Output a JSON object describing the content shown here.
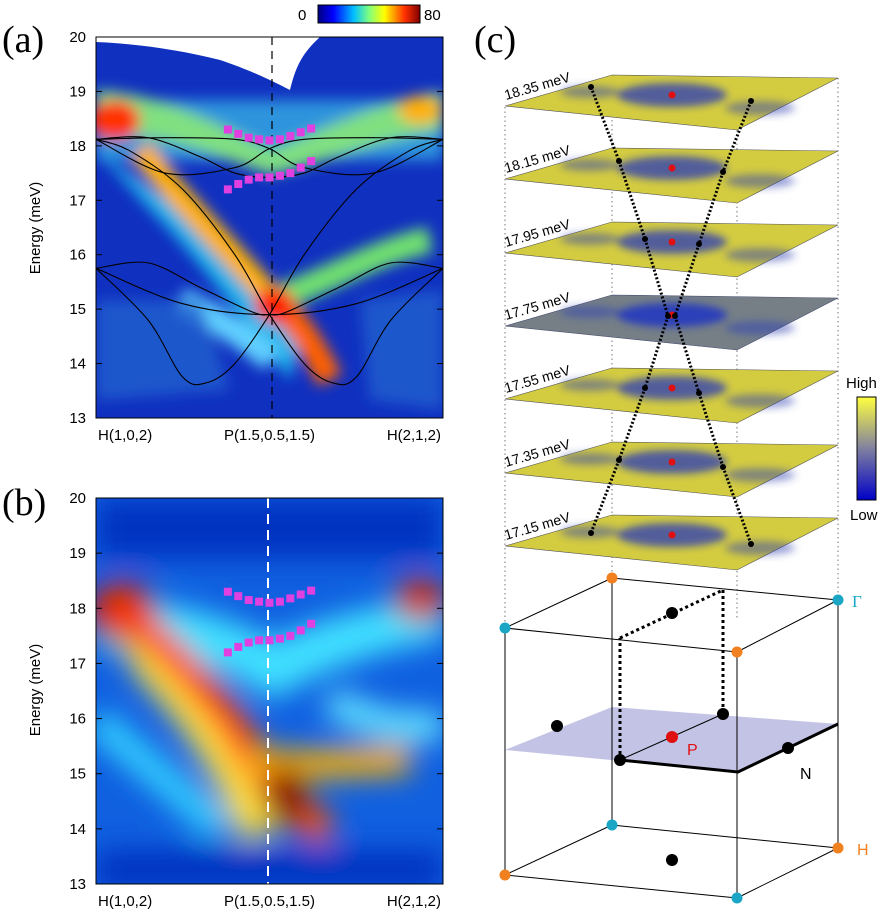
{
  "panels": {
    "a": "(a)",
    "b": "(b)",
    "c": "(c)"
  },
  "colors": {
    "marker": "#e040e0",
    "gamma": "#1aa6c4",
    "h_point": "#f08020",
    "p_point": "#e01010"
  },
  "colorbar_a": {
    "min": "0",
    "max": "80"
  },
  "colorbar_c": {
    "high": "High",
    "low": "Low"
  },
  "chart_data": [
    {
      "type": "heatmap",
      "panel": "(a)",
      "ylabel": "Energy (meV)",
      "ylim": [
        13,
        20
      ],
      "yticks": [
        "13",
        "14",
        "15",
        "16",
        "17",
        "18",
        "19",
        "20"
      ],
      "xticks": [
        "H(1,0,2)",
        "P(1.5,0.5,1.5)",
        "H(2,1,2)"
      ],
      "xlim": [
        0,
        1
      ],
      "colorbar_range": [
        0,
        80
      ],
      "dispersion_curves": [
        {
          "points": [
            [
              0.0,
              18.12
            ],
            [
              0.15,
              18.15
            ],
            [
              0.3,
              17.8
            ],
            [
              0.4,
              17.5
            ],
            [
              0.5,
              17.42
            ],
            [
              0.6,
              17.5
            ],
            [
              0.7,
              17.8
            ],
            [
              0.85,
              18.15
            ],
            [
              1.0,
              18.12
            ]
          ]
        },
        {
          "points": [
            [
              0.0,
              18.12
            ],
            [
              0.2,
              18.15
            ],
            [
              0.4,
              18.12
            ],
            [
              0.5,
              17.95
            ],
            [
              0.6,
              17.6
            ],
            [
              0.8,
              17.5
            ],
            [
              1.0,
              18.12
            ]
          ]
        },
        {
          "points": [
            [
              0.0,
              18.12
            ],
            [
              0.2,
              17.5
            ],
            [
              0.4,
              17.6
            ],
            [
              0.5,
              17.95
            ],
            [
              0.6,
              18.12
            ],
            [
              0.8,
              18.15
            ],
            [
              1.0,
              18.12
            ]
          ]
        },
        {
          "points": [
            [
              0.0,
              15.75
            ],
            [
              0.15,
              15.85
            ],
            [
              0.3,
              15.4
            ],
            [
              0.45,
              14.95
            ],
            [
              0.5,
              14.9
            ],
            [
              0.55,
              14.95
            ],
            [
              0.7,
              15.4
            ],
            [
              0.85,
              15.85
            ],
            [
              1.0,
              15.75
            ]
          ]
        },
        {
          "points": [
            [
              0.0,
              15.75
            ],
            [
              0.15,
              14.8
            ],
            [
              0.25,
              13.75
            ],
            [
              0.32,
              13.65
            ],
            [
              0.4,
              14.0
            ],
            [
              0.5,
              14.9
            ],
            [
              0.6,
              16.0
            ],
            [
              0.75,
              17.2
            ],
            [
              0.9,
              17.9
            ],
            [
              1.0,
              18.12
            ]
          ]
        },
        {
          "points": [
            [
              0.0,
              18.12
            ],
            [
              0.1,
              17.9
            ],
            [
              0.25,
              17.2
            ],
            [
              0.4,
              16.0
            ],
            [
              0.5,
              14.9
            ],
            [
              0.6,
              14.0
            ],
            [
              0.68,
              13.65
            ],
            [
              0.75,
              13.75
            ],
            [
              0.85,
              14.8
            ],
            [
              1.0,
              15.75
            ]
          ]
        },
        {
          "points": [
            [
              0.0,
              15.75
            ],
            [
              0.25,
              15.1
            ],
            [
              0.5,
              14.9
            ],
            [
              0.75,
              15.1
            ],
            [
              1.0,
              15.75
            ]
          ]
        }
      ],
      "markers_upper": {
        "x": [
          0.38,
          0.41,
          0.44,
          0.47,
          0.5,
          0.53,
          0.56,
          0.59,
          0.62
        ],
        "y": [
          18.3,
          18.22,
          18.15,
          18.12,
          18.1,
          18.12,
          18.18,
          18.25,
          18.32
        ]
      },
      "markers_lower": {
        "x": [
          0.38,
          0.41,
          0.44,
          0.47,
          0.5,
          0.53,
          0.56,
          0.59,
          0.62
        ],
        "y": [
          17.2,
          17.3,
          17.38,
          17.42,
          17.42,
          17.45,
          17.5,
          17.6,
          17.72
        ]
      }
    },
    {
      "type": "heatmap",
      "panel": "(b)",
      "ylabel": "Energy (meV)",
      "ylim": [
        13,
        20
      ],
      "yticks": [
        "13",
        "14",
        "15",
        "16",
        "17",
        "18",
        "19",
        "20"
      ],
      "xticks": [
        "H(1,0,2)",
        "P(1.5,0.5,1.5)",
        "H(2,1,2)"
      ],
      "xlim": [
        0,
        1
      ],
      "markers_upper": {
        "x": [
          0.38,
          0.41,
          0.44,
          0.47,
          0.5,
          0.53,
          0.56,
          0.59,
          0.62
        ],
        "y": [
          18.3,
          18.22,
          18.15,
          18.12,
          18.1,
          18.12,
          18.18,
          18.25,
          18.32
        ]
      },
      "markers_lower": {
        "x": [
          0.38,
          0.41,
          0.44,
          0.47,
          0.5,
          0.53,
          0.56,
          0.59,
          0.62
        ],
        "y": [
          17.2,
          17.3,
          17.38,
          17.42,
          17.42,
          17.45,
          17.5,
          17.6,
          17.72
        ]
      }
    }
  ],
  "panel_c": {
    "energy_slices": [
      "18.35 meV",
      "18.15 meV",
      "17.95 meV",
      "17.75 meV",
      "17.55 meV",
      "17.35 meV",
      "17.15 meV"
    ],
    "point_labels": {
      "gamma": "Γ",
      "p": "P",
      "n": "N",
      "h": "H"
    }
  }
}
